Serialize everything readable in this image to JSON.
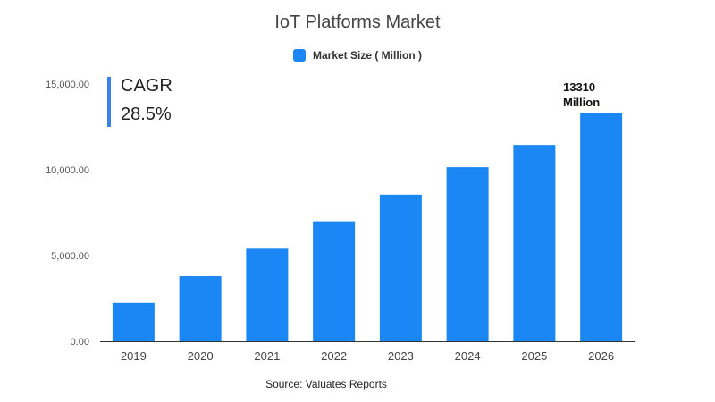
{
  "chart_data": {
    "type": "bar",
    "title": "IoT Platforms Market",
    "legend": [
      "Market Size ( Million )"
    ],
    "legend_position": "top-center",
    "categories": [
      "2019",
      "2020",
      "2021",
      "2022",
      "2023",
      "2024",
      "2025",
      "2026"
    ],
    "series": [
      {
        "name": "Market Size ( Million )",
        "values": [
          2250,
          3800,
          5400,
          7000,
          8550,
          10150,
          11450,
          13310
        ],
        "color": "#1a87f5"
      }
    ],
    "ylim": [
      0,
      15000
    ],
    "yticks": [
      "0.00",
      "5,000.00",
      "10,000.00",
      "15,000.00"
    ],
    "ytick_values": [
      0,
      5000,
      10000,
      15000
    ],
    "grid": false,
    "annotations": {
      "cagr_label": "CAGR",
      "cagr_value": "28.5%",
      "last_bar_label_line1": "13310",
      "last_bar_label_line2": "Million"
    },
    "source": "Source: Valuates Reports"
  },
  "colors": {
    "bar": "#1a87f5",
    "cagr_accent": "#3b82e6"
  }
}
